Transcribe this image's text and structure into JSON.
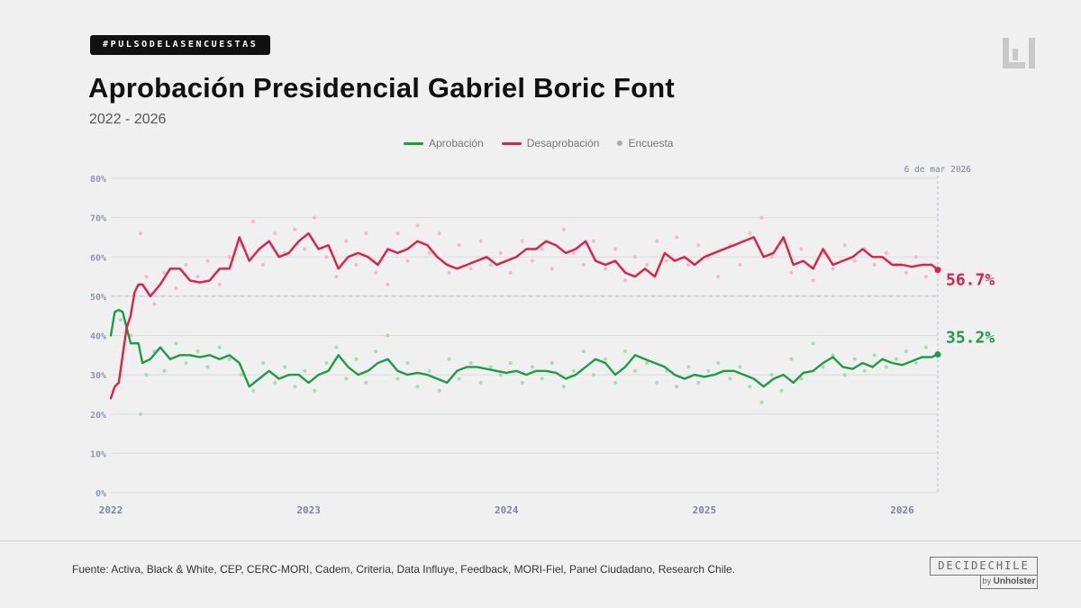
{
  "header": {
    "hashtag": "#PULSODELASENCUESTAS",
    "title": "Aprobación Presidencial Gabriel Boric Font",
    "subtitle": "2022 - 2026"
  },
  "colors": {
    "approval": "#1a9e45",
    "disapproval": "#e01e4a",
    "approval_dots": "#9ed9ac",
    "disapproval_dots": "#f3b3c2",
    "grid": "#dcdcdc",
    "axis_text": "#8f98ab"
  },
  "legend": {
    "approval": "Aprobación",
    "disapproval": "Desaprobación",
    "poll": "Encuesta"
  },
  "footer": {
    "source": "Fuente: Activa, Black & White, CEP, CERC-MORI, Cadem, Criteria, Data Influye, Feedback, MORI-Fiel, Panel Ciudadano, Research Chile.",
    "brand": "DECIDECHILE",
    "brand_by": "by",
    "brand_company": "Unholster"
  },
  "chart_data": {
    "type": "line",
    "title": "Aprobación Presidencial Gabriel Boric Font",
    "subtitle": "2022 - 2026",
    "xlabel": "",
    "ylabel": "",
    "x_range": [
      2022.0,
      2026.18
    ],
    "ylim": [
      0,
      80
    ],
    "y_ticks": [
      "0%",
      "10%",
      "20%",
      "30%",
      "40%",
      "50%",
      "60%",
      "70%",
      "80%"
    ],
    "x_ticks": [
      "2022",
      "2023",
      "2024",
      "2025",
      "2026"
    ],
    "reference_line": 50,
    "cursor_label": "6 de mar 2026",
    "cursor_x": 2026.18,
    "series": [
      {
        "name": "Aprobación",
        "key": "approval",
        "final_label": "35.2%",
        "x": [
          2022.0,
          2022.02,
          2022.04,
          2022.06,
          2022.08,
          2022.1,
          2022.12,
          2022.14,
          2022.16,
          2022.2,
          2022.25,
          2022.3,
          2022.35,
          2022.4,
          2022.45,
          2022.5,
          2022.55,
          2022.6,
          2022.65,
          2022.7,
          2022.75,
          2022.8,
          2022.85,
          2022.9,
          2022.95,
          2023.0,
          2023.05,
          2023.1,
          2023.15,
          2023.2,
          2023.25,
          2023.3,
          2023.35,
          2023.4,
          2023.45,
          2023.5,
          2023.55,
          2023.6,
          2023.65,
          2023.7,
          2023.75,
          2023.8,
          2023.85,
          2023.9,
          2023.95,
          2024.0,
          2024.05,
          2024.1,
          2024.15,
          2024.2,
          2024.25,
          2024.3,
          2024.35,
          2024.4,
          2024.45,
          2024.5,
          2024.55,
          2024.6,
          2024.65,
          2024.7,
          2024.75,
          2024.8,
          2024.85,
          2024.9,
          2024.95,
          2025.0,
          2025.05,
          2025.1,
          2025.15,
          2025.2,
          2025.25,
          2025.3,
          2025.35,
          2025.4,
          2025.45,
          2025.5,
          2025.55,
          2025.6,
          2025.65,
          2025.7,
          2025.75,
          2025.8,
          2025.85,
          2025.9,
          2025.95,
          2026.0,
          2026.05,
          2026.1,
          2026.15,
          2026.18
        ],
        "values": [
          40,
          46,
          46.5,
          46,
          42,
          38,
          38,
          38,
          33,
          34,
          37,
          34,
          35,
          35,
          34.5,
          35,
          34,
          35,
          33,
          27,
          29,
          31,
          29,
          30,
          30,
          28,
          30,
          31,
          35,
          32,
          30,
          31,
          33,
          34,
          31,
          30,
          30.5,
          30,
          29,
          28,
          31,
          32,
          32,
          31.5,
          31,
          30.5,
          31,
          30,
          31,
          31,
          30.5,
          29,
          30,
          32,
          34,
          33,
          30,
          32,
          35,
          34,
          33,
          32,
          30,
          29,
          30,
          29.5,
          30,
          31,
          31,
          30,
          29,
          27,
          29,
          30,
          28,
          30.5,
          31,
          33,
          34.5,
          32,
          31.5,
          33,
          32,
          34,
          33,
          32.5,
          33.5,
          34.5,
          34.5,
          35.2
        ]
      },
      {
        "name": "Desaprobación",
        "key": "disapproval",
        "final_label": "56.7%",
        "x": [
          2022.0,
          2022.02,
          2022.04,
          2022.06,
          2022.08,
          2022.1,
          2022.12,
          2022.14,
          2022.16,
          2022.2,
          2022.25,
          2022.3,
          2022.35,
          2022.4,
          2022.45,
          2022.5,
          2022.55,
          2022.6,
          2022.65,
          2022.7,
          2022.75,
          2022.8,
          2022.85,
          2022.9,
          2022.95,
          2023.0,
          2023.05,
          2023.1,
          2023.15,
          2023.2,
          2023.25,
          2023.3,
          2023.35,
          2023.4,
          2023.45,
          2023.5,
          2023.55,
          2023.6,
          2023.65,
          2023.7,
          2023.75,
          2023.8,
          2023.85,
          2023.9,
          2023.95,
          2024.0,
          2024.05,
          2024.1,
          2024.15,
          2024.2,
          2024.25,
          2024.3,
          2024.35,
          2024.4,
          2024.45,
          2024.5,
          2024.55,
          2024.6,
          2024.65,
          2024.7,
          2024.75,
          2024.8,
          2024.85,
          2024.9,
          2024.95,
          2025.0,
          2025.05,
          2025.1,
          2025.15,
          2025.2,
          2025.25,
          2025.3,
          2025.35,
          2025.4,
          2025.45,
          2025.5,
          2025.55,
          2025.6,
          2025.65,
          2025.7,
          2025.75,
          2025.8,
          2025.85,
          2025.9,
          2025.95,
          2026.0,
          2026.05,
          2026.1,
          2026.15,
          2026.18
        ],
        "values": [
          24,
          27,
          28,
          35,
          42,
          45,
          51,
          53,
          53,
          50,
          53,
          57,
          57,
          54,
          53.5,
          54,
          57,
          57,
          65,
          59,
          62,
          64,
          60,
          61,
          64,
          66,
          62,
          63,
          57,
          60,
          61,
          60,
          58,
          62,
          61,
          62,
          64,
          63,
          60,
          58,
          57,
          58,
          59,
          60,
          58,
          59,
          60,
          62,
          62,
          64,
          63,
          61,
          62,
          64,
          59,
          58,
          59,
          56,
          55,
          57,
          55,
          61,
          59,
          60,
          58,
          60,
          61,
          62,
          63,
          64,
          65,
          60,
          61,
          65,
          58,
          59,
          57,
          62,
          58,
          59,
          60,
          62,
          60,
          60,
          58,
          58,
          57.5,
          58,
          58,
          56.7
        ]
      }
    ],
    "poll_points": {
      "name": "Encuesta",
      "approval": [
        [
          2022.05,
          44
        ],
        [
          2022.1,
          40
        ],
        [
          2022.15,
          20
        ],
        [
          2022.18,
          30
        ],
        [
          2022.22,
          36
        ],
        [
          2022.27,
          31
        ],
        [
          2022.33,
          38
        ],
        [
          2022.38,
          33
        ],
        [
          2022.44,
          36
        ],
        [
          2022.49,
          32
        ],
        [
          2022.55,
          37
        ],
        [
          2022.6,
          34
        ],
        [
          2022.66,
          30
        ],
        [
          2022.72,
          26
        ],
        [
          2022.77,
          33
        ],
        [
          2022.83,
          28
        ],
        [
          2022.88,
          32
        ],
        [
          2022.93,
          27
        ],
        [
          2022.98,
          31
        ],
        [
          2023.03,
          26
        ],
        [
          2023.09,
          33
        ],
        [
          2023.14,
          37
        ],
        [
          2023.19,
          29
        ],
        [
          2023.24,
          34
        ],
        [
          2023.29,
          28
        ],
        [
          2023.34,
          36
        ],
        [
          2023.4,
          40
        ],
        [
          2023.45,
          29
        ],
        [
          2023.5,
          33
        ],
        [
          2023.55,
          27
        ],
        [
          2023.61,
          31
        ],
        [
          2023.66,
          26
        ],
        [
          2023.71,
          34
        ],
        [
          2023.76,
          29
        ],
        [
          2023.82,
          33
        ],
        [
          2023.87,
          28
        ],
        [
          2023.92,
          32
        ],
        [
          2023.97,
          30
        ],
        [
          2024.02,
          33
        ],
        [
          2024.08,
          28
        ],
        [
          2024.13,
          32
        ],
        [
          2024.18,
          29
        ],
        [
          2024.23,
          33
        ],
        [
          2024.29,
          27
        ],
        [
          2024.34,
          31
        ],
        [
          2024.39,
          36
        ],
        [
          2024.44,
          30
        ],
        [
          2024.5,
          34
        ],
        [
          2024.55,
          28
        ],
        [
          2024.6,
          36
        ],
        [
          2024.65,
          31
        ],
        [
          2024.71,
          33
        ],
        [
          2024.76,
          28
        ],
        [
          2024.81,
          31
        ],
        [
          2024.86,
          27
        ],
        [
          2024.92,
          32
        ],
        [
          2024.97,
          28
        ],
        [
          2025.02,
          31
        ],
        [
          2025.07,
          33
        ],
        [
          2025.13,
          29
        ],
        [
          2025.18,
          32
        ],
        [
          2025.23,
          27
        ],
        [
          2025.29,
          23
        ],
        [
          2025.34,
          30
        ],
        [
          2025.39,
          26
        ],
        [
          2025.44,
          34
        ],
        [
          2025.49,
          29
        ],
        [
          2025.55,
          38
        ],
        [
          2025.6,
          32
        ],
        [
          2025.65,
          35
        ],
        [
          2025.71,
          30
        ],
        [
          2025.76,
          34
        ],
        [
          2025.81,
          31
        ],
        [
          2025.86,
          35
        ],
        [
          2025.92,
          32
        ],
        [
          2025.97,
          34
        ],
        [
          2026.02,
          36
        ],
        [
          2026.07,
          33
        ],
        [
          2026.12,
          37
        ]
      ],
      "disapproval": [
        [
          2022.05,
          30
        ],
        [
          2022.1,
          40
        ],
        [
          2022.15,
          66
        ],
        [
          2022.18,
          55
        ],
        [
          2022.22,
          48
        ],
        [
          2022.27,
          56
        ],
        [
          2022.33,
          52
        ],
        [
          2022.38,
          58
        ],
        [
          2022.44,
          55
        ],
        [
          2022.49,
          59
        ],
        [
          2022.55,
          53
        ],
        [
          2022.6,
          60
        ],
        [
          2022.66,
          63
        ],
        [
          2022.72,
          69
        ],
        [
          2022.77,
          58
        ],
        [
          2022.83,
          66
        ],
        [
          2022.88,
          61
        ],
        [
          2022.93,
          67
        ],
        [
          2022.98,
          62
        ],
        [
          2023.03,
          70
        ],
        [
          2023.09,
          60
        ],
        [
          2023.14,
          55
        ],
        [
          2023.19,
          64
        ],
        [
          2023.24,
          58
        ],
        [
          2023.29,
          66
        ],
        [
          2023.34,
          56
        ],
        [
          2023.4,
          53
        ],
        [
          2023.45,
          66
        ],
        [
          2023.5,
          59
        ],
        [
          2023.55,
          68
        ],
        [
          2023.61,
          61
        ],
        [
          2023.66,
          66
        ],
        [
          2023.71,
          56
        ],
        [
          2023.76,
          63
        ],
        [
          2023.82,
          57
        ],
        [
          2023.87,
          64
        ],
        [
          2023.92,
          58
        ],
        [
          2023.97,
          61
        ],
        [
          2024.02,
          56
        ],
        [
          2024.08,
          64
        ],
        [
          2024.13,
          59
        ],
        [
          2024.18,
          62
        ],
        [
          2024.23,
          57
        ],
        [
          2024.29,
          67
        ],
        [
          2024.34,
          61
        ],
        [
          2024.39,
          58
        ],
        [
          2024.44,
          64
        ],
        [
          2024.5,
          57
        ],
        [
          2024.55,
          62
        ],
        [
          2024.6,
          54
        ],
        [
          2024.65,
          60
        ],
        [
          2024.71,
          58
        ],
        [
          2024.76,
          64
        ],
        [
          2024.81,
          59
        ],
        [
          2024.86,
          65
        ],
        [
          2024.92,
          58
        ],
        [
          2024.97,
          63
        ],
        [
          2025.02,
          60
        ],
        [
          2025.07,
          55
        ],
        [
          2025.13,
          63
        ],
        [
          2025.18,
          58
        ],
        [
          2025.23,
          66
        ],
        [
          2025.29,
          70
        ],
        [
          2025.34,
          60
        ],
        [
          2025.39,
          64
        ],
        [
          2025.44,
          56
        ],
        [
          2025.49,
          62
        ],
        [
          2025.55,
          54
        ],
        [
          2025.6,
          61
        ],
        [
          2025.65,
          57
        ],
        [
          2025.71,
          63
        ],
        [
          2025.76,
          59
        ],
        [
          2025.81,
          62
        ],
        [
          2025.86,
          58
        ],
        [
          2025.92,
          61
        ],
        [
          2025.97,
          58
        ],
        [
          2026.02,
          56
        ],
        [
          2026.07,
          60
        ],
        [
          2026.12,
          55
        ]
      ]
    }
  }
}
